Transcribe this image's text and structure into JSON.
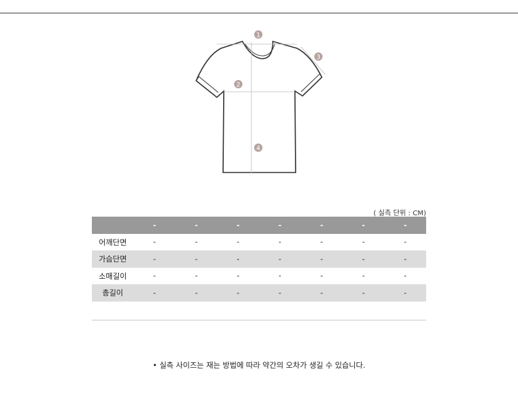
{
  "unit_note": "( 실측 단위 : CM)",
  "table": {
    "header": [
      "",
      "-",
      "-",
      "-",
      "-",
      "-",
      "-",
      "-"
    ],
    "rows": [
      {
        "label": "어깨단면",
        "values": [
          "-",
          "-",
          "-",
          "-",
          "-",
          "-",
          "-"
        ]
      },
      {
        "label": "가슴단면",
        "values": [
          "-",
          "-",
          "-",
          "-",
          "-",
          "-",
          "-"
        ]
      },
      {
        "label": "소매길이",
        "values": [
          "-",
          "-",
          "-",
          "-",
          "-",
          "-",
          "-"
        ]
      },
      {
        "label": "총길이",
        "values": [
          "-",
          "-",
          "-",
          "-",
          "-",
          "-",
          "-"
        ]
      }
    ]
  },
  "diagram": {
    "markers": [
      "1",
      "2",
      "3",
      "4"
    ],
    "marker_color": "#b5a3a0"
  },
  "footer_note": "• 실측 사이즈는 재는 방법에 따라 약간의 오차가 생길 수 있습니다."
}
